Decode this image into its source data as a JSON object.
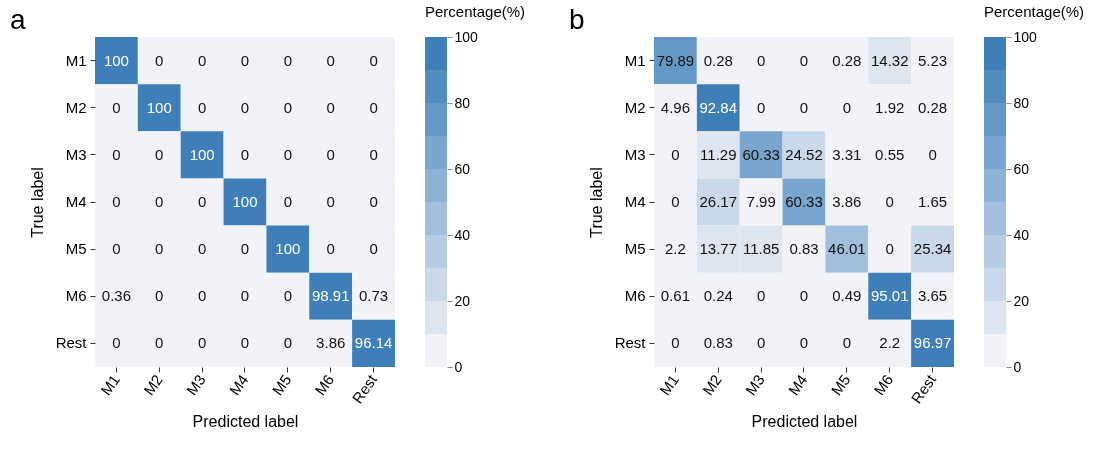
{
  "chart_data": [
    {
      "type": "heatmap",
      "title": "a",
      "xlabel": "Predicted label",
      "ylabel": "True label",
      "clabel": "Percentage(%)",
      "categories": [
        "M1",
        "M2",
        "M3",
        "M4",
        "M5",
        "M6",
        "Rest"
      ],
      "y_categories": [
        "M1",
        "M2",
        "M3",
        "M4",
        "M5",
        "M6",
        "Rest"
      ],
      "clim": [
        0,
        100
      ],
      "cticks": [
        0,
        20,
        40,
        60,
        80,
        100
      ],
      "data_labels": true,
      "cells": [
        [
          100,
          0,
          0,
          0,
          0,
          0,
          0
        ],
        [
          0,
          100,
          0,
          0,
          0,
          0,
          0
        ],
        [
          0,
          0,
          100,
          0,
          0,
          0,
          0
        ],
        [
          0,
          0,
          0,
          100,
          0,
          0,
          0
        ],
        [
          0,
          0,
          0,
          0,
          100,
          0,
          0
        ],
        [
          0.36,
          0,
          0,
          0,
          0,
          98.91,
          0.73
        ],
        [
          0,
          0,
          0,
          0,
          0,
          3.86,
          96.14
        ]
      ]
    },
    {
      "type": "heatmap",
      "title": "b",
      "xlabel": "Predicted label",
      "ylabel": "True label",
      "clabel": "Percentage(%)",
      "categories": [
        "M1",
        "M2",
        "M3",
        "M4",
        "M5",
        "M6",
        "Rest"
      ],
      "y_categories": [
        "M1",
        "M2",
        "M3",
        "M4",
        "M5",
        "M6",
        "Rest"
      ],
      "clim": [
        0,
        100
      ],
      "cticks": [
        0,
        20,
        40,
        60,
        80,
        100
      ],
      "data_labels": true,
      "cells": [
        [
          79.89,
          0.28,
          0,
          0,
          0.28,
          14.32,
          5.23
        ],
        [
          4.96,
          92.84,
          0,
          0,
          0,
          1.92,
          0.28
        ],
        [
          0,
          11.29,
          60.33,
          24.52,
          3.31,
          0.55,
          0
        ],
        [
          0,
          26.17,
          7.99,
          60.33,
          3.86,
          0,
          1.65
        ],
        [
          2.2,
          13.77,
          11.85,
          0.83,
          46.01,
          0,
          25.34
        ],
        [
          0.61,
          0.24,
          0,
          0,
          0.49,
          95.01,
          3.65
        ],
        [
          0,
          0.83,
          0,
          0,
          0,
          2.2,
          96.97
        ]
      ]
    }
  ]
}
